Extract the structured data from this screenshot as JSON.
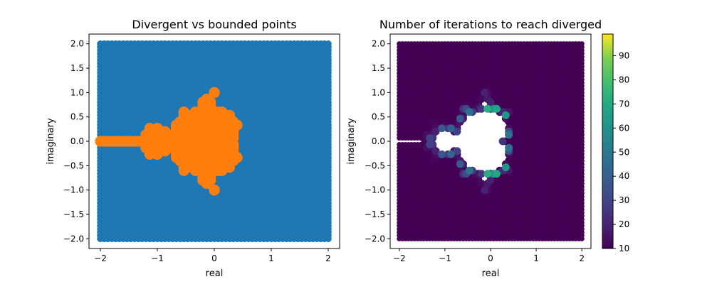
{
  "chart_data": [
    {
      "type": "scatter",
      "title": "Divergent vs bounded points",
      "xlabel": "real",
      "ylabel": "imaginary",
      "xlim": [
        -2.2,
        2.2
      ],
      "ylim": [
        -2.2,
        2.2
      ],
      "x_ticks": [
        -2,
        -1,
        0,
        1,
        2
      ],
      "y_ticks": [
        -2.0,
        -1.5,
        -1.0,
        -0.5,
        0.0,
        0.5,
        1.0,
        1.5,
        2.0
      ],
      "grid": false,
      "sample_domain": {
        "real": [
          -2,
          2
        ],
        "imaginary": [
          -2,
          2
        ]
      },
      "series": [
        {
          "color": "#1f77b4",
          "region": "divergent (outside Mandelbrot set)"
        },
        {
          "color": "#ff7f0e",
          "region": "bounded (Mandelbrot set)"
        }
      ]
    },
    {
      "type": "scatter",
      "title": "Number of iterations to reach diverged",
      "xlabel": "real",
      "ylabel": "imaginary",
      "xlim": [
        -2.2,
        2.2
      ],
      "ylim": [
        -2.2,
        2.2
      ],
      "x_ticks": [
        -2,
        -1,
        0,
        1,
        2
      ],
      "y_ticks": [
        -2.0,
        -1.5,
        -1.0,
        -0.5,
        0.0,
        0.5,
        1.0,
        1.5,
        2.0
      ],
      "grid": false,
      "colormap": "viridis",
      "colorbar": {
        "min": 10,
        "max": 99,
        "ticks": [
          10,
          20,
          30,
          40,
          50,
          60,
          70,
          80,
          90
        ]
      },
      "bounded_color": "#ffffff"
    }
  ]
}
